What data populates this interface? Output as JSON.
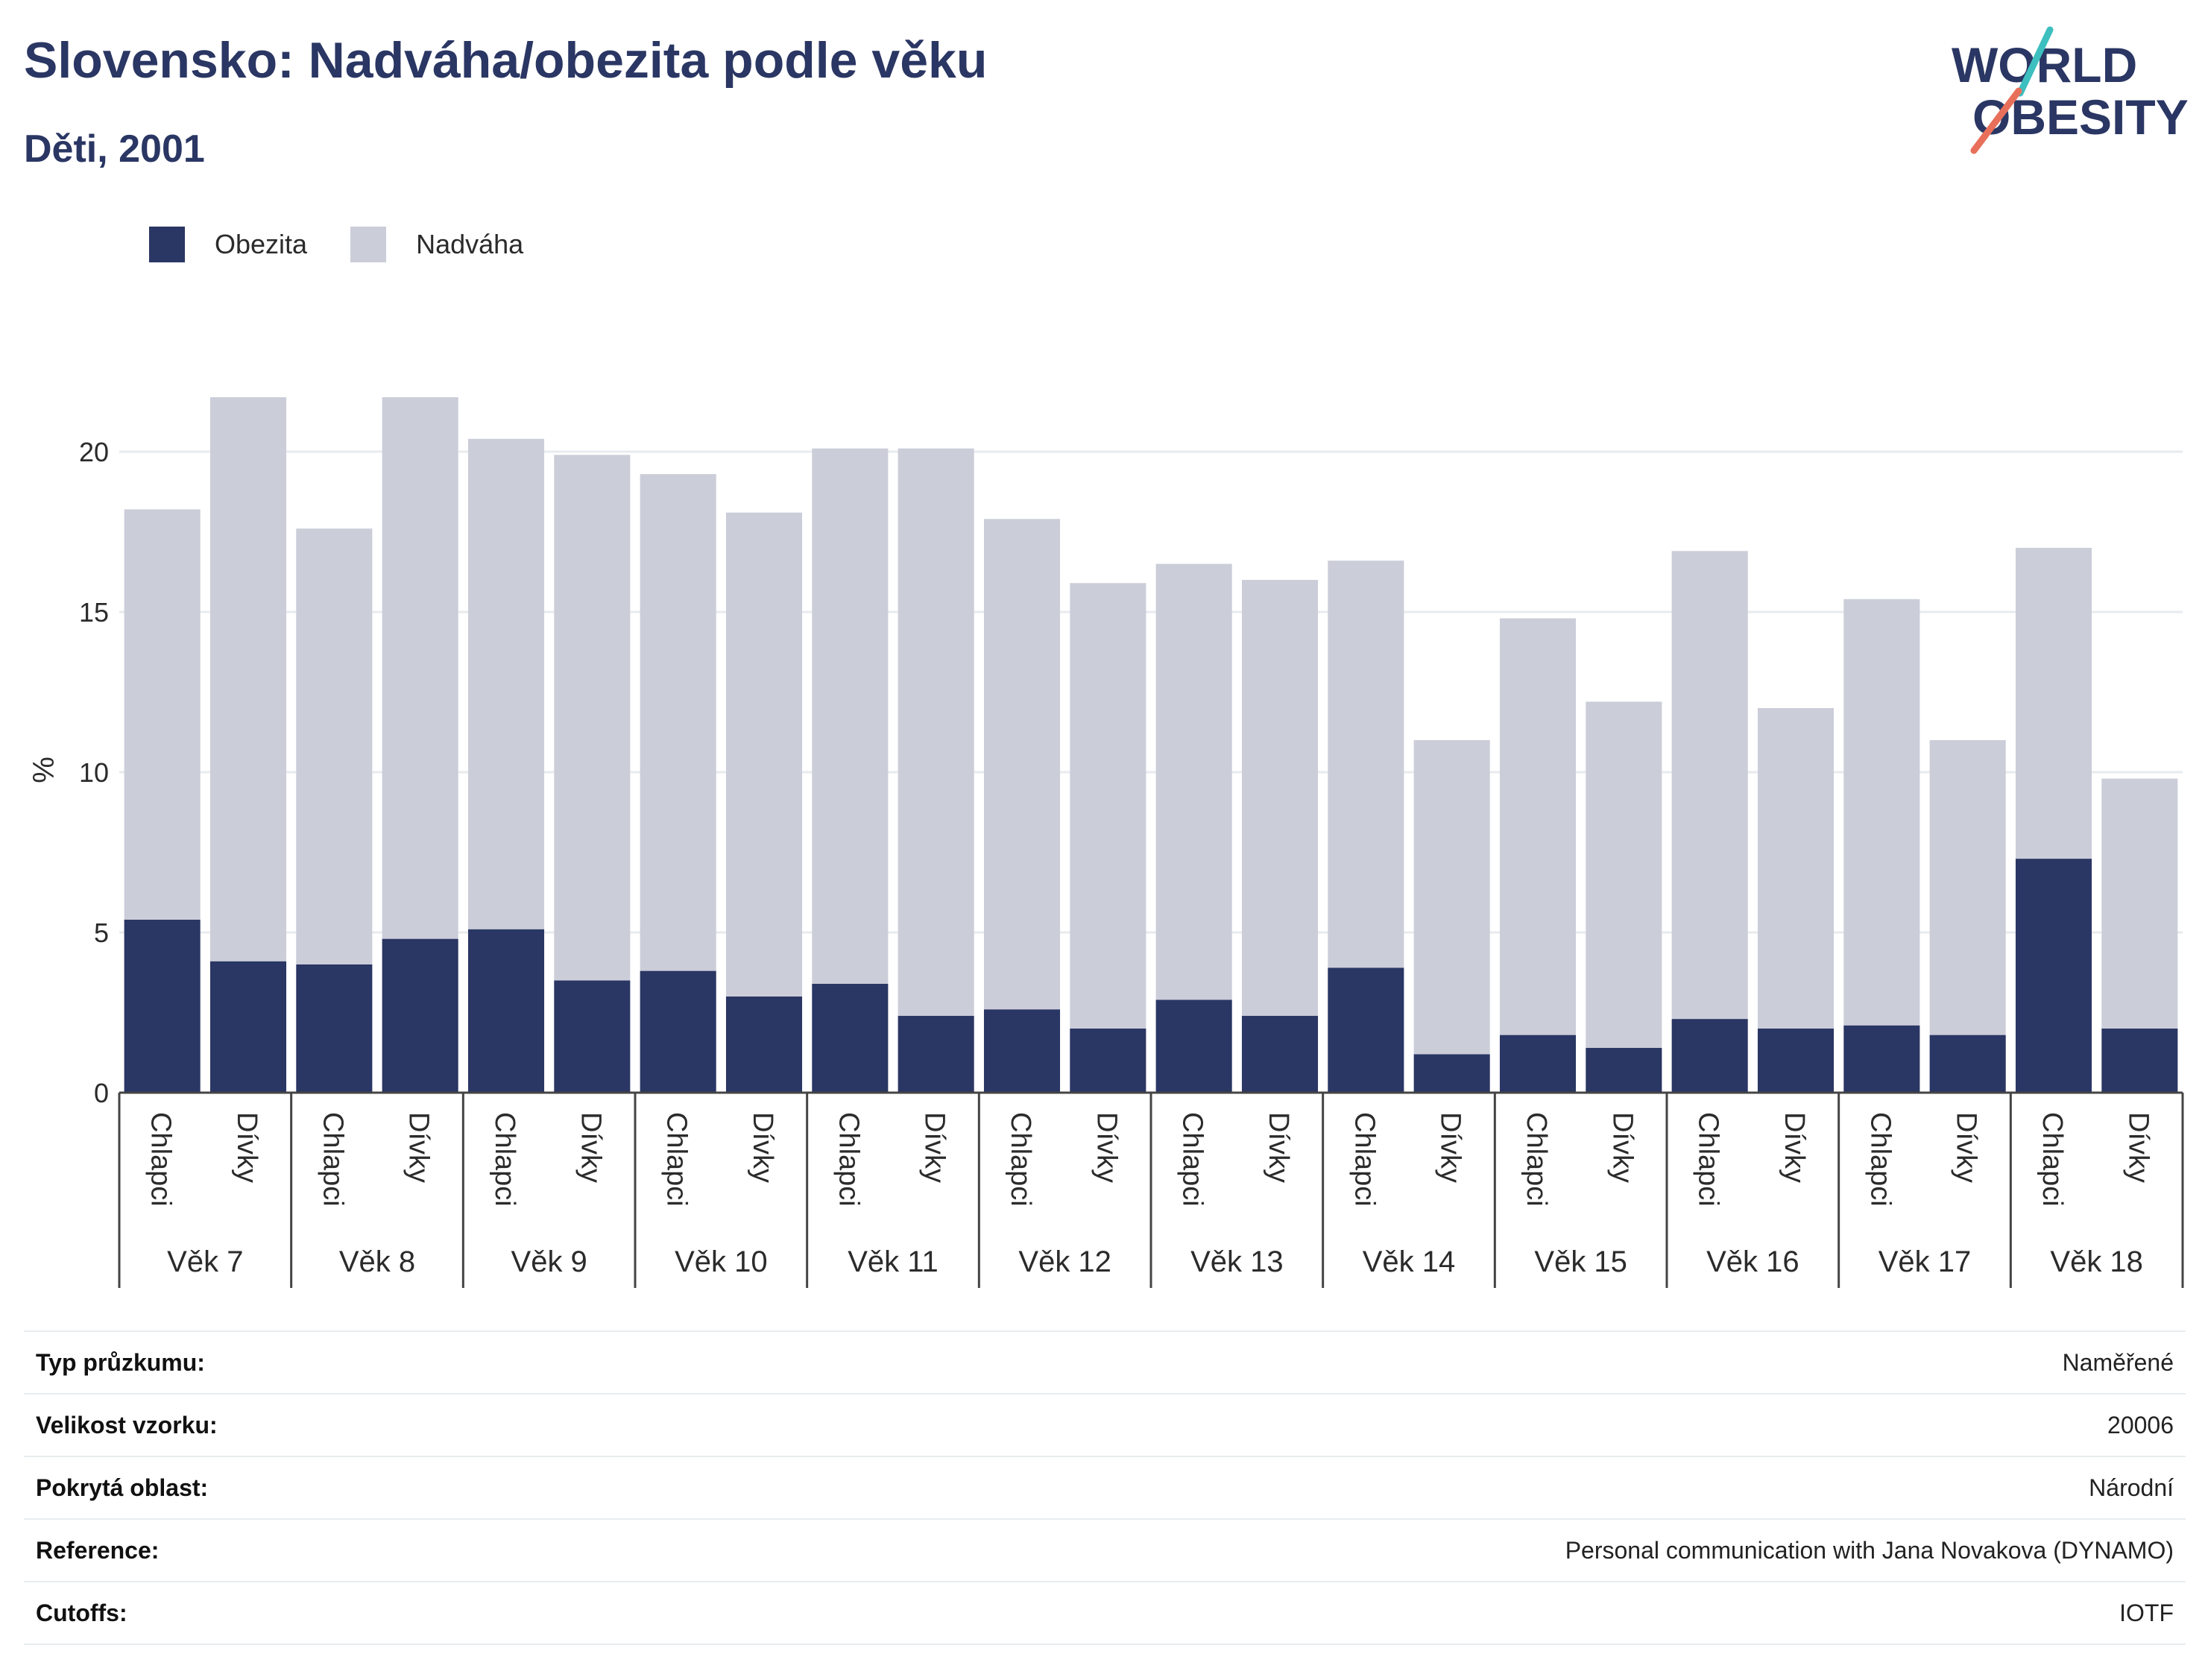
{
  "header": {
    "title": "Slovensko: Nadváha/obezita podle věku",
    "subtitle": "Děti, 2001"
  },
  "logo": {
    "line1": "WORLD",
    "line2": "OBESITY",
    "accent_colors": [
      "#3dbfbf",
      "#e8705a"
    ]
  },
  "legend": [
    {
      "label": "Obezita",
      "color": "#2a3663"
    },
    {
      "label": "Nadváha",
      "color": "#cbcdd9"
    }
  ],
  "chart_data": {
    "type": "bar",
    "stacked": true,
    "title": "Slovensko: Nadváha/obezita podle věku",
    "subtitle": "Děti, 2001",
    "ylabel": "%",
    "ylim": [
      0,
      22
    ],
    "yticks": [
      0,
      5,
      10,
      15,
      20
    ],
    "grid": true,
    "legend_position": "top-left",
    "groups": [
      "Věk 7",
      "Věk 8",
      "Věk 9",
      "Věk 10",
      "Věk 11",
      "Věk 12",
      "Věk 13",
      "Věk 14",
      "Věk 15",
      "Věk 16",
      "Věk 17",
      "Věk 18"
    ],
    "subcategories": [
      "Chlapci",
      "Dívky"
    ],
    "series": [
      {
        "name": "Obezita",
        "color": "#2a3663",
        "values": [
          5.4,
          4.1,
          4.0,
          4.8,
          5.1,
          3.5,
          3.8,
          3.0,
          3.4,
          2.4,
          2.6,
          2.0,
          2.9,
          2.4,
          3.9,
          1.2,
          1.8,
          1.4,
          2.3,
          2.0,
          2.1,
          1.8,
          7.3,
          2.0
        ]
      },
      {
        "name": "Nadváha",
        "color": "#cbcdd9",
        "values": [
          12.8,
          17.6,
          13.6,
          16.9,
          15.3,
          16.4,
          15.5,
          15.1,
          16.7,
          17.7,
          15.3,
          13.9,
          13.6,
          13.6,
          12.7,
          9.8,
          13.0,
          10.8,
          14.6,
          10.0,
          13.3,
          9.2,
          9.7,
          7.8
        ]
      }
    ]
  },
  "info_table": [
    {
      "key": "Typ průzkumu:",
      "value": "Naměřené"
    },
    {
      "key": "Velikost vzorku:",
      "value": "20006"
    },
    {
      "key": "Pokrytá oblast:",
      "value": "Národní"
    },
    {
      "key": "Reference:",
      "value": "Personal communication with Jana Novakova (DYNAMO)"
    },
    {
      "key": "Cutoffs:",
      "value": "IOTF"
    }
  ]
}
